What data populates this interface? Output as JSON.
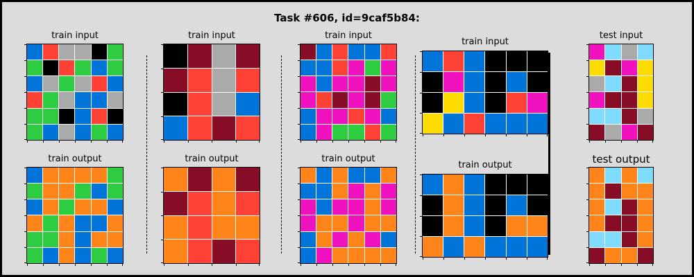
{
  "title": "Task #606, id=9caf5b84:",
  "palette": {
    "0": "#000000",
    "1": "#0074d9",
    "2": "#ff4136",
    "3": "#2ecc40",
    "4": "#ffdc00",
    "5": "#aaaaaa",
    "6": "#f012be",
    "7": "#ff851b",
    "8": "#7fdbff",
    "9": "#870c25"
  },
  "panels": [
    {
      "label": "train input",
      "grid": [
        [
          1,
          2,
          5,
          5,
          0,
          3
        ],
        [
          3,
          0,
          2,
          3,
          1,
          3
        ],
        [
          1,
          5,
          3,
          5,
          2,
          1
        ],
        [
          2,
          3,
          5,
          1,
          1,
          5
        ],
        [
          3,
          3,
          0,
          1,
          2,
          0
        ],
        [
          3,
          1,
          5,
          1,
          3,
          1
        ]
      ]
    },
    {
      "label": "train output",
      "grid": [
        [
          1,
          7,
          7,
          7,
          7,
          3
        ],
        [
          3,
          7,
          7,
          3,
          1,
          3
        ],
        [
          1,
          7,
          3,
          7,
          7,
          1
        ],
        [
          7,
          3,
          7,
          1,
          1,
          7
        ],
        [
          3,
          3,
          7,
          1,
          7,
          7
        ],
        [
          3,
          1,
          7,
          1,
          3,
          1
        ]
      ]
    },
    {
      "label": "train input",
      "grid": [
        [
          0,
          9,
          5,
          9
        ],
        [
          9,
          2,
          5,
          2
        ],
        [
          0,
          2,
          5,
          1
        ],
        [
          1,
          2,
          9,
          2
        ]
      ]
    },
    {
      "label": "train output",
      "grid": [
        [
          7,
          9,
          7,
          9
        ],
        [
          9,
          2,
          7,
          2
        ],
        [
          7,
          2,
          7,
          7
        ],
        [
          7,
          2,
          9,
          2
        ]
      ]
    },
    {
      "label": "train input",
      "grid": [
        [
          9,
          1,
          2,
          1,
          1,
          2
        ],
        [
          1,
          1,
          2,
          6,
          3,
          6
        ],
        [
          6,
          1,
          6,
          6,
          9,
          6
        ],
        [
          6,
          2,
          9,
          6,
          9,
          3
        ],
        [
          1,
          6,
          6,
          2,
          6,
          1
        ],
        [
          1,
          6,
          3,
          3,
          2,
          3
        ]
      ]
    },
    {
      "label": "train output",
      "grid": [
        [
          7,
          1,
          7,
          1,
          1,
          7
        ],
        [
          1,
          1,
          7,
          6,
          7,
          6
        ],
        [
          6,
          1,
          6,
          6,
          7,
          6
        ],
        [
          6,
          7,
          7,
          6,
          7,
          7
        ],
        [
          1,
          7,
          6,
          7,
          6,
          1
        ],
        [
          1,
          6,
          7,
          7,
          7,
          7
        ]
      ]
    },
    {
      "label": "train input",
      "grid": [
        [
          1,
          2,
          1,
          0,
          0,
          0
        ],
        [
          0,
          6,
          1,
          0,
          1,
          0
        ],
        [
          0,
          4,
          1,
          0,
          2,
          6
        ],
        [
          4,
          1,
          2,
          1,
          1,
          1
        ]
      ]
    },
    {
      "label": "train output",
      "grid": [
        [
          1,
          7,
          1,
          0,
          0,
          0
        ],
        [
          0,
          7,
          1,
          0,
          1,
          0
        ],
        [
          0,
          7,
          1,
          0,
          7,
          7
        ],
        [
          7,
          1,
          7,
          1,
          1,
          1
        ]
      ]
    },
    {
      "label": "test input",
      "grid": [
        [
          6,
          8,
          5,
          8
        ],
        [
          4,
          9,
          6,
          4
        ],
        [
          5,
          8,
          9,
          4
        ],
        [
          6,
          9,
          9,
          4
        ],
        [
          8,
          8,
          9,
          5
        ],
        [
          9,
          5,
          6,
          9
        ]
      ]
    },
    {
      "label": "test output",
      "grid": [
        [
          7,
          8,
          7,
          8
        ],
        [
          7,
          9,
          7,
          7
        ],
        [
          7,
          8,
          9,
          7
        ],
        [
          7,
          9,
          9,
          7
        ],
        [
          8,
          8,
          9,
          7
        ],
        [
          9,
          7,
          7,
          9
        ]
      ]
    }
  ]
}
